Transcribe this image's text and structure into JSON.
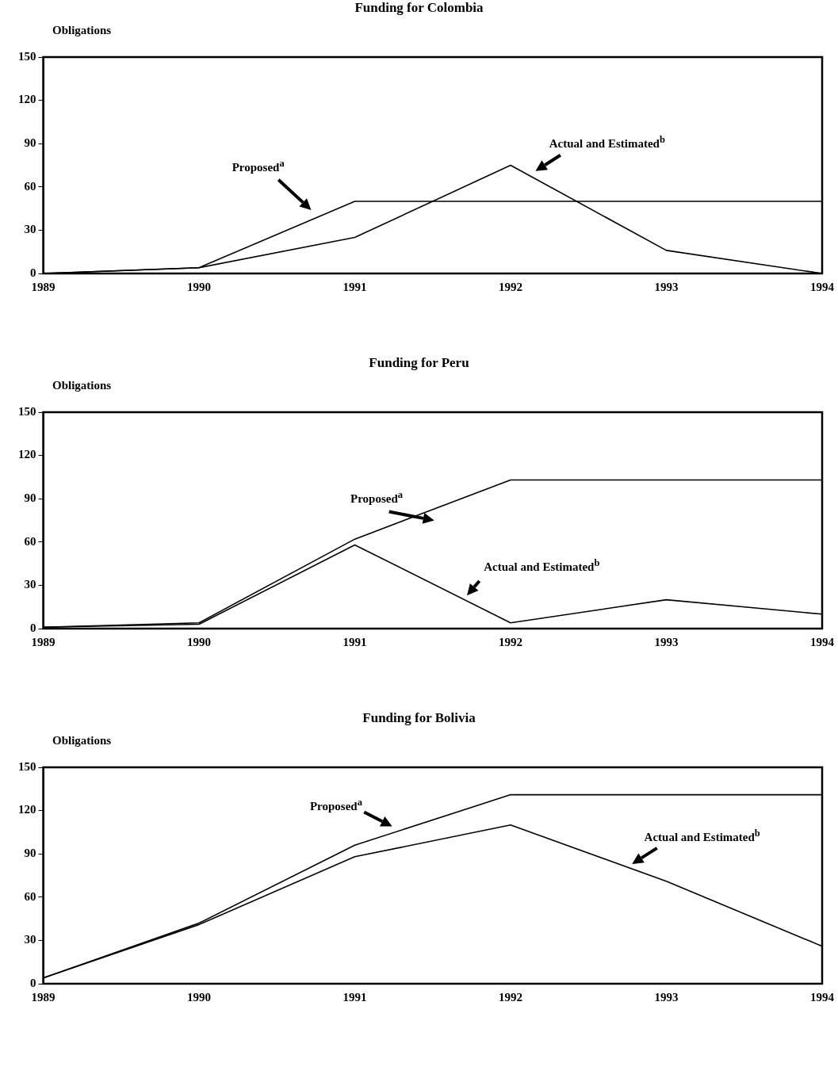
{
  "chart_data": [
    {
      "type": "line",
      "title": "Funding for Colombia",
      "ylabel": "Obligations",
      "categories": [
        "1989",
        "1990",
        "1991",
        "1992",
        "1993",
        "1994"
      ],
      "ylim": [
        0,
        150
      ],
      "yticks": [
        0,
        30,
        60,
        90,
        120,
        150
      ],
      "grid": false,
      "legend": false,
      "marker": "none",
      "line_style": "solid",
      "series": [
        {
          "name": "Proposed$^{a}$",
          "color": "#000000",
          "values": [
            0,
            4,
            50,
            50,
            50,
            50
          ]
        },
        {
          "name": "Actual and Estimated$^{b}$",
          "color": "#000000",
          "values": [
            0,
            4,
            25,
            75,
            16,
            0
          ]
        }
      ]
    },
    {
      "type": "line",
      "title": "Funding for Peru",
      "ylabel": "Obligations",
      "categories": [
        "1989",
        "1990",
        "1991",
        "1992",
        "1993",
        "1994"
      ],
      "ylim": [
        0,
        150
      ],
      "yticks": [
        0,
        30,
        60,
        90,
        120,
        150
      ],
      "grid": false,
      "legend": false,
      "marker": "none",
      "line_style": "solid",
      "series": [
        {
          "name": "Proposed$^{a}$",
          "color": "#000000",
          "values": [
            1,
            4,
            62,
            103,
            103,
            103
          ]
        },
        {
          "name": "Actual and Estimated$^{b}$",
          "color": "#000000",
          "values": [
            1,
            3,
            58,
            4,
            20,
            10
          ]
        }
      ]
    },
    {
      "type": "line",
      "title": "Funding for Bolivia",
      "ylabel": "Obligations",
      "categories": [
        "1989",
        "1990",
        "1991",
        "1992",
        "1993",
        "1994"
      ],
      "ylim": [
        0,
        150
      ],
      "yticks": [
        0,
        30,
        60,
        90,
        120,
        150
      ],
      "grid": false,
      "legend": false,
      "marker": "none",
      "line_style": "solid",
      "series": [
        {
          "name": "Proposed$^{a}$",
          "color": "#000000",
          "values": [
            4,
            42,
            96,
            131,
            131,
            131
          ]
        },
        {
          "name": "Actual and Estimated$^{b}$",
          "color": "#000000",
          "values": [
            4,
            41,
            88,
            110,
            71,
            26
          ]
        }
      ]
    }
  ]
}
